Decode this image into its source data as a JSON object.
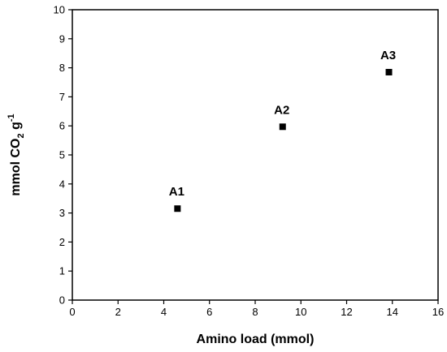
{
  "chart_data": {
    "type": "scatter",
    "title": "",
    "xlabel": "Amino load (mmol)",
    "ylabel": {
      "base": "mmol CO",
      "subscript": "2",
      "unit": " g",
      "superscript": "-1"
    },
    "xlim": [
      0,
      16
    ],
    "ylim": [
      0,
      10
    ],
    "xticks": [
      "0",
      "2",
      "4",
      "6",
      "8",
      "10",
      "12",
      "14",
      "16"
    ],
    "yticks": [
      "0",
      "1",
      "2",
      "3",
      "4",
      "5",
      "6",
      "7",
      "8",
      "9",
      "10"
    ],
    "grid": false,
    "marker": "square",
    "color": "#000000",
    "points": [
      {
        "label": "A1",
        "x": 4.6,
        "y": 3.15
      },
      {
        "label": "A2",
        "x": 9.2,
        "y": 5.97
      },
      {
        "label": "A3",
        "x": 13.85,
        "y": 7.85
      }
    ]
  }
}
